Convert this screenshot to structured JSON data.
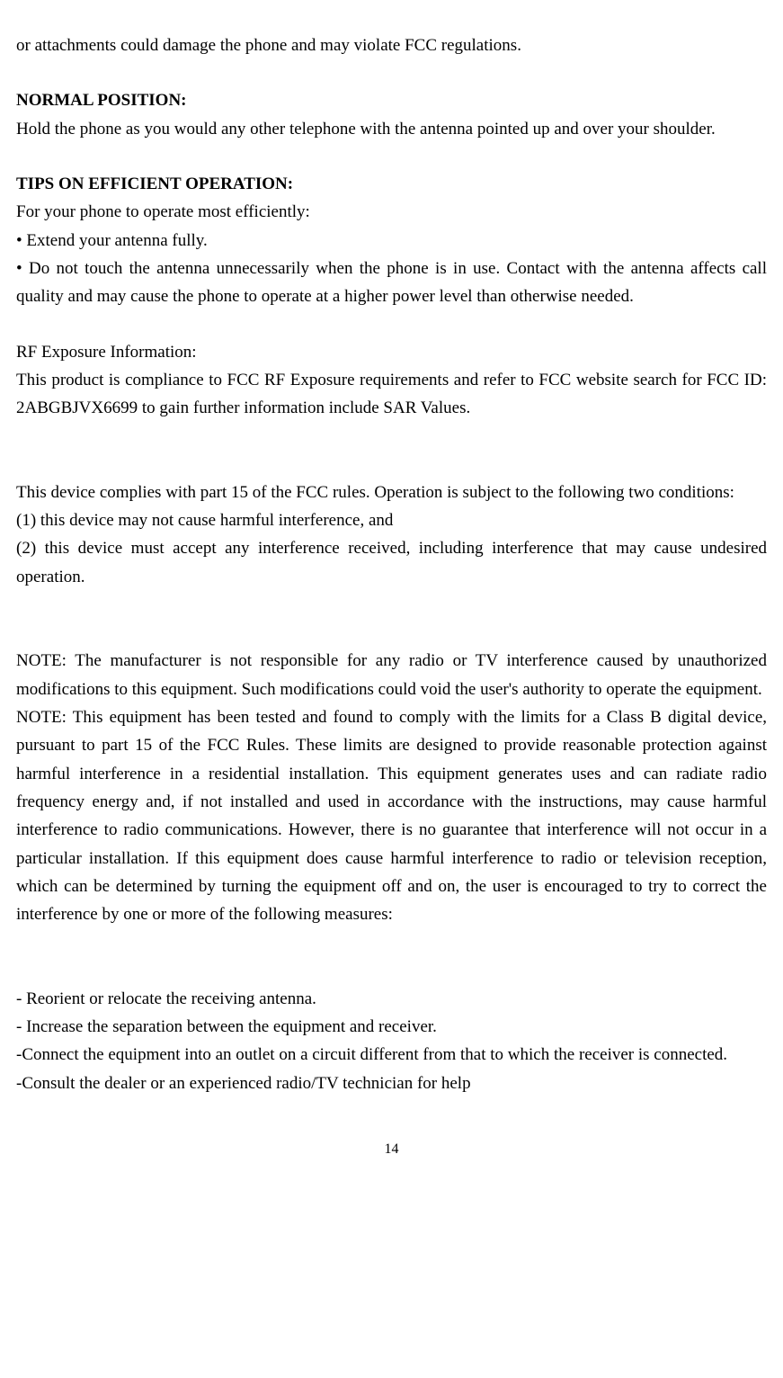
{
  "intro": {
    "text": "or attachments could damage the phone and may violate FCC regulations."
  },
  "normal_position": {
    "heading": "NORMAL POSITION:",
    "text": "Hold the phone as you would any other telephone with the antenna pointed up and over your shoulder."
  },
  "tips": {
    "heading": "TIPS ON EFFICIENT OPERATION:",
    "intro": "For your phone to operate most efficiently:",
    "bullet1": "• Extend your antenna fully.",
    "bullet2": "• Do not touch the antenna unnecessarily when the phone is in use. Contact with the antenna affects call quality and may cause the phone to operate at a higher power level than otherwise needed."
  },
  "rf_exposure": {
    "heading": "RF Exposure Information:",
    "text": "This product is compliance to FCC RF Exposure requirements and refer to FCC website search for FCC ID: 2ABGBJVX6699 to gain further information include SAR Values."
  },
  "part15": {
    "intro": "This device complies with part 15 of the FCC rules. Operation is subject to the following two conditions:",
    "condition1": "(1) this device may not cause harmful interference, and",
    "condition2": "(2) this device must accept any interference received, including interference that may cause undesired operation."
  },
  "notes": {
    "note1": "NOTE: The manufacturer is not responsible for any radio or TV interference caused by unauthorized modifications to this equipment. Such modifications could void the user's authority to operate the equipment.",
    "note2": "NOTE: This equipment has been tested and found to comply with the limits for a Class B digital device, pursuant to part 15 of the FCC Rules. These limits are designed to provide reasonable protection against harmful interference in a residential installation. This equipment generates uses and can radiate radio frequency energy and, if not installed and used in accordance with the instructions, may cause harmful interference to radio communications. However, there is no guarantee that interference will not occur in a particular installation. If this equipment does cause harmful interference to radio or television reception, which can be determined by turning the equipment off and on, the user is encouraged to try to correct the interference by one or more of the following measures:"
  },
  "measures": {
    "item1": "- Reorient or relocate the receiving antenna.",
    "item2": "- Increase the separation between the equipment and receiver.",
    "item3": "-Connect the equipment into an outlet on a circuit different from that to which the receiver is connected.",
    "item4": "-Consult the dealer or an experienced radio/TV technician for help"
  },
  "page_number": "14"
}
